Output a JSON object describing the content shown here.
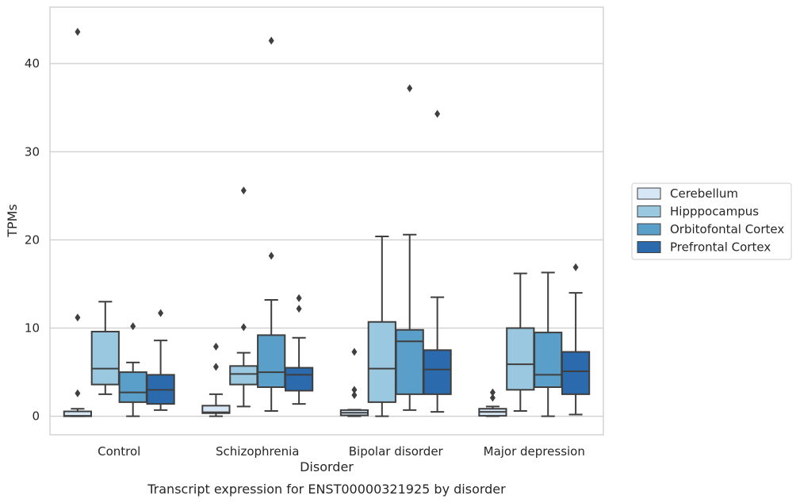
{
  "chart_data": {
    "type": "box",
    "xlabel": "Disorder",
    "ylabel": "TPMs",
    "caption": "Transcript expression for ENST00000321925 by disorder",
    "ylim": [
      -2.1,
      46.4
    ],
    "yticks": [
      0,
      10,
      20,
      30,
      40
    ],
    "grid": "horizontal",
    "legend_position": "right",
    "categories": [
      "Control",
      "Schizophrenia",
      "Bipolar disorder",
      "Major depression"
    ],
    "series": [
      {
        "name": "Cerebellum",
        "color": "#d6e6f4",
        "boxes": [
          {
            "whislo": 0.0,
            "q1": 0.0,
            "med": 0.05,
            "q3": 0.55,
            "whishi": 0.85,
            "fliers": [
              2.6,
              11.2,
              43.6
            ]
          },
          {
            "whislo": 0.0,
            "q1": 0.35,
            "med": 0.45,
            "q3": 1.2,
            "whishi": 2.5,
            "fliers": [
              5.6,
              7.9
            ]
          },
          {
            "whislo": 0.0,
            "q1": 0.1,
            "med": 0.4,
            "q3": 0.7,
            "whishi": 0.75,
            "fliers": [
              2.4,
              3.0,
              7.3
            ]
          },
          {
            "whislo": 0.0,
            "q1": 0.05,
            "med": 0.5,
            "q3": 0.85,
            "whishi": 1.1,
            "fliers": [
              2.1,
              2.7
            ]
          }
        ]
      },
      {
        "name": "Hipppocampus",
        "color": "#9ac8e0",
        "boxes": [
          {
            "whislo": 2.5,
            "q1": 3.6,
            "med": 5.4,
            "q3": 9.6,
            "whishi": 13.0,
            "fliers": []
          },
          {
            "whislo": 1.1,
            "q1": 3.6,
            "med": 4.8,
            "q3": 5.7,
            "whishi": 7.2,
            "fliers": [
              10.1,
              25.6
            ]
          },
          {
            "whislo": 0.0,
            "q1": 1.6,
            "med": 5.4,
            "q3": 10.7,
            "whishi": 20.4,
            "fliers": []
          },
          {
            "whislo": 0.6,
            "q1": 3.0,
            "med": 5.9,
            "q3": 10.0,
            "whishi": 16.2,
            "fliers": []
          }
        ]
      },
      {
        "name": "Orbitofontal Cortex",
        "color": "#5a9fc9",
        "boxes": [
          {
            "whislo": 0.0,
            "q1": 1.6,
            "med": 2.7,
            "q3": 5.0,
            "whishi": 6.1,
            "fliers": [
              10.2
            ]
          },
          {
            "whislo": 0.6,
            "q1": 3.3,
            "med": 5.0,
            "q3": 9.2,
            "whishi": 13.2,
            "fliers": [
              18.2,
              42.6
            ]
          },
          {
            "whislo": 0.7,
            "q1": 2.5,
            "med": 8.5,
            "q3": 9.8,
            "whishi": 20.6,
            "fliers": [
              37.2
            ]
          },
          {
            "whislo": 0.0,
            "q1": 3.3,
            "med": 4.7,
            "q3": 9.5,
            "whishi": 16.3,
            "fliers": []
          }
        ]
      },
      {
        "name": "Prefrontal Cortex",
        "color": "#2a6aad",
        "boxes": [
          {
            "whislo": 0.7,
            "q1": 1.4,
            "med": 3.0,
            "q3": 4.7,
            "whishi": 8.6,
            "fliers": [
              11.7
            ]
          },
          {
            "whislo": 1.4,
            "q1": 2.9,
            "med": 4.7,
            "q3": 5.5,
            "whishi": 8.9,
            "fliers": [
              12.2,
              13.4
            ]
          },
          {
            "whislo": 0.5,
            "q1": 2.5,
            "med": 5.3,
            "q3": 7.5,
            "whishi": 13.5,
            "fliers": [
              34.3
            ]
          },
          {
            "whislo": 0.2,
            "q1": 2.5,
            "med": 5.1,
            "q3": 7.3,
            "whishi": 14.0,
            "fliers": [
              16.9
            ]
          }
        ]
      }
    ]
  }
}
